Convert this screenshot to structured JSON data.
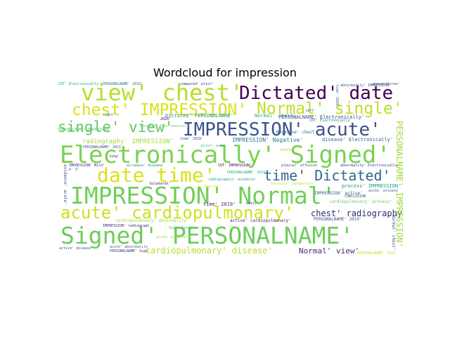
{
  "title": "Wordcloud for impression",
  "words": [
    {
      "text": "view' chest'",
      "color": "#b5de2b"
    },
    {
      "text": "Dictated' date",
      "color": "#440154"
    },
    {
      "text": "chest' IMPRESSION'",
      "color": "#d8e219"
    },
    {
      "text": "Normal' single'",
      "color": "#bddf26"
    },
    {
      "text": "single' view'",
      "color": "#5ec962"
    },
    {
      "text": "IMPRESSION' acute'",
      "color": "#3b528b"
    },
    {
      "text": "Electronically' Signed'",
      "color": "#7ad151"
    },
    {
      "text": "date time'",
      "color": "#d8e219"
    },
    {
      "text": "time' Dictated'",
      "color": "#31688e"
    },
    {
      "text": "IMPRESSION' Normal'",
      "color": "#70cf57"
    },
    {
      "text": "acute' cardiopulmonary'",
      "color": "#cde11d"
    },
    {
      "text": "chest' radiography",
      "color": "#2c2d71"
    },
    {
      "text": "Signed' PERSONALNAME'",
      "color": "#6ccd5a"
    },
    {
      "text": "cardiopulmonary' disease'",
      "color": "#b8de29"
    },
    {
      "text": "Normal' view'",
      "color": "#472d7b"
    },
    {
      "text": "PERSONALNAME' IMPRESSION'",
      "color": "#a0da39"
    },
    {
      "text": "Normal' chest'",
      "color": "#27ad81"
    },
    {
      "text": "radiography' IMPRESSION'",
      "color": "#a5db36"
    },
    {
      "text": "IMPRESSION' Negative'",
      "color": "#2a788e"
    },
    {
      "text": "Dictated' PERSONALNAME'",
      "color": "#21918c"
    },
    {
      "text": "Negative' chest'",
      "color": "#31688e"
    },
    {
      "text": "PERSONALNAME' Electronically'",
      "color": "#3e4989"
    },
    {
      "text": "disease' Electronically'",
      "color": "#355f8d"
    },
    {
      "text": "CDT' Electronically'",
      "color": "#20a486"
    },
    {
      "text": "PERSONALNAME' 2018'",
      "color": "#2c728e"
    },
    {
      "text": "compared' prior'",
      "color": "#463480"
    },
    {
      "text": "pneumothorax'",
      "color": "#443983"
    },
    {
      "text": "time' 2019'",
      "color": "#481b6d"
    },
    {
      "text": "process' IMPRESSION'",
      "color": "#1f998a"
    },
    {
      "text": "IMPRESSION' active'",
      "color": "#31688e"
    },
    {
      "text": "cardiopulmonary' process'",
      "color": "#67cc5c"
    },
    {
      "text": "PERSONALNAME' 2019'",
      "color": "#3b528b"
    },
    {
      "text": "active' cardiopulmonary'",
      "color": "#482173"
    },
    {
      "text": "cardiopulmonary' abnormality",
      "color": "#a2da37"
    },
    {
      "text": "airspace' disease",
      "color": "#26828e"
    },
    {
      "text": "pleural' effusion",
      "color": "#414487"
    },
    {
      "text": "radiographic' evidence'",
      "color": "#1fa287"
    },
    {
      "text": "abnormality' Electronically",
      "color": "#46327e"
    },
    {
      "text": "Stable'",
      "color": "#a8db34"
    },
    {
      "text": "CONCLUSION",
      "color": "#3b528b"
    },
    {
      "text": "acute' process",
      "color": "#32648e"
    },
    {
      "text": "vascular' congestion",
      "color": "#bade28"
    },
    {
      "text": "bilateral'",
      "color": "#440154"
    },
    {
      "text": "small'",
      "color": "#404688"
    },
    {
      "text": "Sign' Dated",
      "color": "#4ac16d"
    },
    {
      "text": "IMPRESSION' radiograph",
      "color": "#482475"
    },
    {
      "text": "active' disease'",
      "color": "#3b528b"
    },
    {
      "text": "acute' abnormality",
      "color": "#2d708e"
    },
    {
      "text": "PERSONALNAME' Sign",
      "color": "#453781"
    },
    {
      "text": "PERSONALNAME' 2021'",
      "color": "#39568c"
    },
    {
      "text": "process' Electronically",
      "color": "#5ec962"
    },
    {
      "text": "PERSONALNAME' 2023'",
      "color": "#26ad81"
    },
    {
      "text": "CDT' IMPRESSION'",
      "color": "#440154"
    },
    {
      "text": "IMPRESSION' Mild'",
      "color": "#482878"
    },
    {
      "text": "acute' pulmonary",
      "color": "#a0da39"
    },
    {
      "text": "evidence' acute'",
      "color": "#3e4989"
    },
    {
      "text": "prior' exam",
      "color": "#2db27d"
    },
    {
      "text": "left'",
      "color": "#33638d"
    },
    {
      "text": "lung'",
      "color": "#481467"
    },
    {
      "text": "right'",
      "color": "#31688e"
    },
    {
      "text": "abnormality' IMPRESSION'",
      "color": "#3b528b"
    },
    {
      "text": "PERSONALNAME' IMPRESSION'",
      "color": "#50c46a"
    },
    {
      "text": "PERSONALNAME' 2016'",
      "color": "#c2df23"
    },
    {
      "text": "Normal' chest'",
      "color": "#3b528b"
    },
    {
      "text": "time' 2020'",
      "color": "#31688e"
    },
    {
      "text": "2020'",
      "color": "#440154"
    },
    {
      "text": "time' 2018'",
      "color": "#3b528b"
    },
    {
      "text": "CDT' Electronically'",
      "color": "#25848e"
    },
    {
      "text": "A' D'",
      "color": "#2c728e"
    },
    {
      "text": "opacity'",
      "color": "#d8e219"
    }
  ]
}
